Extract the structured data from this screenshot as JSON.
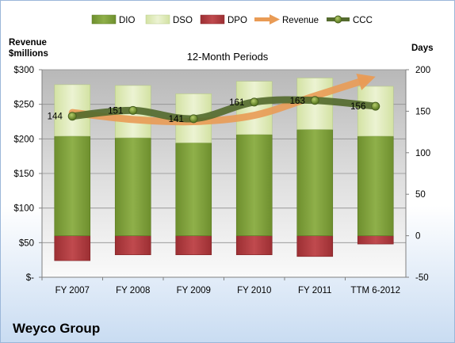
{
  "company_name": "Weyco Group",
  "chart_data": {
    "type": "bar",
    "title": "12-Month Periods",
    "categories": [
      "FY 2007",
      "FY 2008",
      "FY 2009",
      "FY 2010",
      "FY 2011",
      "TTM 6-2012"
    ],
    "legend": {
      "placement": "top",
      "entries": [
        "DIO",
        "DSO",
        "DPO",
        "Revenue",
        "CCC"
      ]
    },
    "y_left": {
      "label_line1": "Revenue",
      "label_line2": "$millions",
      "ylim": [
        0,
        300
      ],
      "ticks": [
        0,
        50,
        100,
        150,
        200,
        250,
        300
      ],
      "tick_labels": [
        "$-",
        "$50",
        "$100",
        "$150",
        "$200",
        "$250",
        "$300"
      ]
    },
    "y_right": {
      "label": "Days",
      "ylim": [
        -50,
        200
      ],
      "ticks": [
        -50,
        0,
        50,
        100,
        150,
        200
      ],
      "tick_labels": [
        "-50",
        "0",
        "50",
        "100",
        "150",
        "200"
      ]
    },
    "grid": true,
    "series": [
      {
        "name": "DIO",
        "kind": "stacked-bar",
        "axis": "right",
        "values": [
          120,
          118,
          112,
          122,
          128,
          120
        ],
        "color": "#7a9a3a"
      },
      {
        "name": "DSO",
        "kind": "stacked-bar",
        "axis": "right",
        "values": [
          62,
          63,
          59,
          64,
          62,
          60
        ],
        "color": "#dde9b5"
      },
      {
        "name": "DPO",
        "kind": "negative-bar",
        "axis": "right",
        "values": [
          -30,
          -23,
          -23,
          -23,
          -25,
          -10
        ],
        "color": "#b13a3e"
      },
      {
        "name": "Revenue",
        "kind": "arrow-line",
        "axis": "left",
        "values": [
          238,
          228,
          225,
          234,
          262,
          290
        ],
        "color": "#e99b55"
      },
      {
        "name": "CCC",
        "kind": "line",
        "axis": "right",
        "values": [
          144,
          151,
          141,
          161,
          163,
          156
        ],
        "labels": [
          "144",
          "151",
          "141",
          "161",
          "163",
          "156"
        ],
        "color": "#556b2f"
      }
    ]
  }
}
